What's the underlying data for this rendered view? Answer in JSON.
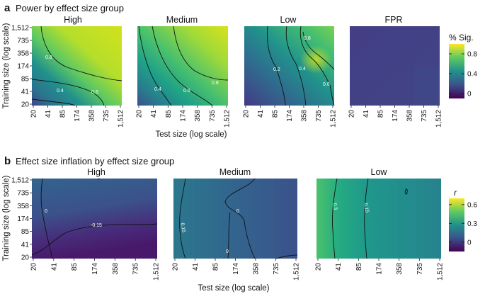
{
  "figure": {
    "section_a": {
      "letter": "a",
      "title": "Power by effect size group"
    },
    "section_b": {
      "letter": "b",
      "title": "Effect size inflation by effect size group"
    }
  },
  "chart_data": [
    {
      "type": "heatmap",
      "title": "Power by effect size group",
      "xlabel": "Test size (log scale)",
      "ylabel": "Training size (log scale)",
      "x_ticks": [
        "20",
        "41",
        "85",
        "174",
        "358",
        "735",
        "1,512"
      ],
      "y_ticks": [
        "20",
        "41",
        "85",
        "174",
        "358",
        "735",
        "1,512"
      ],
      "x_scale": "log",
      "y_scale": "log",
      "colorbar": {
        "title": "% Sig.",
        "ticks": [
          "0",
          "0.4",
          "0.8"
        ],
        "range": [
          -0.1,
          1.0
        ],
        "colormap": "viridis"
      },
      "panels": [
        {
          "name": "High",
          "contours": [
            {
              "level": 0.4,
              "label": "0.4"
            },
            {
              "level": 0.6,
              "label": "0.6"
            },
            {
              "level": 0.8,
              "label": "0.8"
            }
          ]
        },
        {
          "name": "Medium",
          "contours": [
            {
              "level": 0.4,
              "label": "0.4"
            },
            {
              "level": 0.6,
              "label": "0.6"
            },
            {
              "level": 0.8,
              "label": "0.8"
            }
          ]
        },
        {
          "name": "Low",
          "contours": [
            {
              "level": 0.2,
              "label": "0.2"
            },
            {
              "level": 0.4,
              "label": "0.4"
            },
            {
              "level": 0.6,
              "label": "0.6"
            },
            {
              "level": 0.8,
              "label": "0.8"
            }
          ]
        },
        {
          "name": "FPR",
          "contours": []
        }
      ]
    },
    {
      "type": "heatmap",
      "title": "Effect size inflation by effect size group",
      "xlabel": "Test size (log scale)",
      "ylabel": "Training size (log scale)",
      "x_ticks": [
        "20",
        "41",
        "85",
        "174",
        "358",
        "735",
        "1,512"
      ],
      "y_ticks": [
        "20",
        "41",
        "85",
        "174",
        "358",
        "735",
        "1,512"
      ],
      "x_scale": "log",
      "y_scale": "log",
      "colorbar": {
        "title": "r",
        "ticks": [
          "0",
          "0.3",
          "0.6"
        ],
        "range": [
          -0.15,
          0.7
        ],
        "colormap": "viridis"
      },
      "panels": [
        {
          "name": "High",
          "contours": [
            {
              "level": 0,
              "label": "0"
            },
            {
              "level": -0.15,
              "label": "-0.15"
            }
          ]
        },
        {
          "name": "Medium",
          "contours": [
            {
              "level": 0.15,
              "label": "0.15"
            },
            {
              "level": 0,
              "label": "0"
            }
          ]
        },
        {
          "name": "Low",
          "contours": [
            {
              "level": 0.3,
              "label": "0.3"
            },
            {
              "level": 0.15,
              "label": "0.15"
            }
          ]
        }
      ]
    }
  ]
}
